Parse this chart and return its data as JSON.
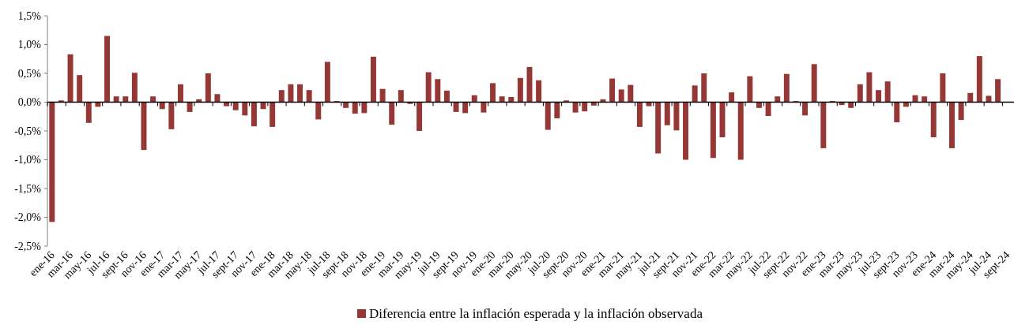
{
  "chart_data": {
    "type": "bar",
    "categories": [
      "ene-16",
      null,
      "mar-16",
      null,
      "may-16",
      null,
      "jul-16",
      null,
      "sept-16",
      null,
      "nov-16",
      null,
      "ene-17",
      null,
      "mar-17",
      null,
      "may-17",
      null,
      "jul-17",
      null,
      "sept-17",
      null,
      "nov-17",
      null,
      "ene-18",
      null,
      "mar-18",
      null,
      "may-18",
      null,
      "jul-18",
      null,
      "sept-18",
      null,
      "nov-18",
      null,
      "ene-19",
      null,
      "mar-19",
      null,
      "may-19",
      null,
      "jul-19",
      null,
      "sept-19",
      null,
      "nov-19",
      null,
      "ene-20",
      null,
      "mar-20",
      null,
      "may-20",
      null,
      "jul-20",
      null,
      "sept-20",
      null,
      "nov-20",
      null,
      "ene-21",
      null,
      "mar-21",
      null,
      "may-21",
      null,
      "jul-21",
      null,
      "sept-21",
      null,
      "nov-21",
      null,
      "ene-22",
      null,
      "mar-22",
      null,
      "may-22",
      null,
      "jul-22",
      null,
      "sept-22",
      null,
      "nov-22",
      null,
      "ene-23",
      null,
      "mar-23",
      null,
      "may-23",
      null,
      "jul-23",
      null,
      "sept-23",
      null,
      "nov-23",
      null,
      "ene-24",
      null,
      "mar-24",
      null,
      "may-24",
      null,
      "jul-24",
      null,
      "sept-24"
    ],
    "series": [
      {
        "name": "Diferencia entre la inflación esperada y la inflación observada",
        "color": "#953735",
        "values": [
          -2.08,
          0.03,
          0.83,
          0.47,
          -0.36,
          -0.08,
          1.15,
          0.1,
          0.1,
          0.51,
          -0.83,
          0.1,
          -0.12,
          -0.47,
          0.31,
          -0.17,
          0.05,
          0.5,
          0.14,
          -0.07,
          -0.14,
          -0.23,
          -0.42,
          -0.12,
          -0.43,
          0.21,
          0.31,
          0.31,
          0.21,
          -0.3,
          0.7,
          0.02,
          -0.1,
          -0.2,
          -0.19,
          0.79,
          0.23,
          -0.39,
          0.21,
          -0.03,
          -0.5,
          0.52,
          0.4,
          0.2,
          -0.17,
          -0.19,
          0.12,
          -0.18,
          0.33,
          0.1,
          0.09,
          0.42,
          0.61,
          0.38,
          -0.48,
          -0.28,
          0.03,
          -0.18,
          -0.16,
          -0.06,
          0.05,
          0.41,
          0.22,
          0.3,
          -0.43,
          -0.07,
          -0.89,
          -0.4,
          -0.49,
          -1.0,
          0.29,
          0.5,
          -0.97,
          -0.61,
          0.17,
          -1.0,
          0.45,
          -0.1,
          -0.24,
          0.1,
          0.49,
          0.02,
          -0.23,
          0.66,
          -0.8,
          0.02,
          -0.05,
          -0.1,
          0.31,
          0.52,
          0.21,
          0.36,
          -0.35,
          -0.08,
          0.12,
          0.1,
          -0.61,
          0.5,
          -0.8,
          -0.31,
          0.16,
          0.8,
          0.11,
          0.4,
          null
        ]
      }
    ],
    "ylim": [
      -2.5,
      1.5
    ],
    "yticks": [
      {
        "value": -2.5,
        "label": "-2,5%"
      },
      {
        "value": -2,
        "label": "-2,0%"
      },
      {
        "value": -1.5,
        "label": "-1,5%"
      },
      {
        "value": -1,
        "label": "-1,0%"
      },
      {
        "value": -0.5,
        "label": "-0,5%"
      },
      {
        "value": 0,
        "label": "0,0%"
      },
      {
        "value": 0.5,
        "label": "0,5%"
      },
      {
        "value": 1,
        "label": "1,0%"
      },
      {
        "value": 1.5,
        "label": "1,5%"
      }
    ],
    "legend": "bottom"
  }
}
